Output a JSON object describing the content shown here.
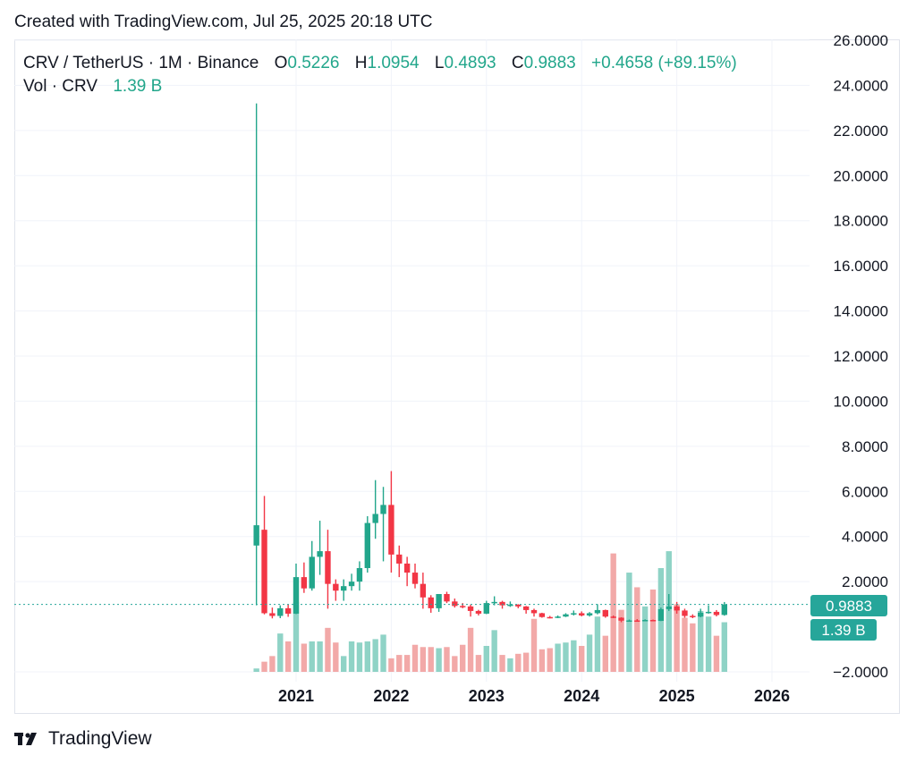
{
  "header": {
    "created_text": "Created with TradingView.com, Jul 25, 2025 20:18 UTC"
  },
  "legend": {
    "symbol": "CRV / TetherUS · 1M · Binance",
    "o_label": "O",
    "o_value": "0.5226",
    "h_label": "H",
    "h_value": "1.0954",
    "l_label": "L",
    "l_value": "0.4893",
    "c_label": "C",
    "c_value": "0.9883",
    "change": "+0.4658 (+89.15%)",
    "vol_label": "Vol · CRV",
    "vol_value": "1.39 B"
  },
  "price_badge": {
    "text": "0.9883"
  },
  "volume_badge": {
    "text": "1.39 B"
  },
  "footer": {
    "brand": "TradingView"
  },
  "colors": {
    "up": "#22a68b",
    "down": "#f23645",
    "up_vol": "#8fd3c6",
    "down_vol": "#f2a9a8",
    "grid": "#f0f3fa",
    "dotted": "#26a69a"
  },
  "chart_data": {
    "type": "candlestick",
    "ylim": [
      -2,
      26
    ],
    "y_ticks": [
      "26.0000",
      "24.0000",
      "22.0000",
      "20.0000",
      "18.0000",
      "16.0000",
      "14.0000",
      "12.0000",
      "10.0000",
      "8.0000",
      "6.0000",
      "4.0000",
      "2.0000",
      "−2.0000"
    ],
    "y_tick_values": [
      26,
      24,
      22,
      20,
      18,
      16,
      14,
      12,
      10,
      8,
      6,
      4,
      2,
      -2
    ],
    "x_ticks": [
      "2021",
      "2022",
      "2023",
      "2024",
      "2025",
      "2026"
    ],
    "x_tick_dates": [
      "2021-01",
      "2022-01",
      "2023-01",
      "2024-01",
      "2025-01",
      "2026-01"
    ],
    "last_close": 0.9883,
    "candles": [
      {
        "t": "2020-08",
        "o": 3.6,
        "h": 23.2,
        "l": 0.95,
        "c": 4.5
      },
      {
        "t": "2020-09",
        "o": 4.3,
        "h": 5.8,
        "l": 0.55,
        "c": 0.6
      },
      {
        "t": "2020-10",
        "o": 0.6,
        "h": 0.85,
        "l": 0.37,
        "c": 0.48
      },
      {
        "t": "2020-11",
        "o": 0.48,
        "h": 0.95,
        "l": 0.38,
        "c": 0.82
      },
      {
        "t": "2020-12",
        "o": 0.82,
        "h": 0.98,
        "l": 0.44,
        "c": 0.58
      },
      {
        "t": "2021-01",
        "o": 0.58,
        "h": 2.8,
        "l": 0.56,
        "c": 2.2
      },
      {
        "t": "2021-02",
        "o": 2.2,
        "h": 2.85,
        "l": 1.5,
        "c": 1.7
      },
      {
        "t": "2021-03",
        "o": 1.7,
        "h": 3.8,
        "l": 1.6,
        "c": 3.1
      },
      {
        "t": "2021-04",
        "o": 3.1,
        "h": 4.7,
        "l": 2.3,
        "c": 3.35
      },
      {
        "t": "2021-05",
        "o": 3.35,
        "h": 4.3,
        "l": 0.8,
        "c": 1.9
      },
      {
        "t": "2021-06",
        "o": 1.9,
        "h": 2.1,
        "l": 1.15,
        "c": 1.6
      },
      {
        "t": "2021-07",
        "o": 1.6,
        "h": 2.1,
        "l": 1.15,
        "c": 1.8
      },
      {
        "t": "2021-08",
        "o": 1.8,
        "h": 2.35,
        "l": 1.6,
        "c": 2.0
      },
      {
        "t": "2021-09",
        "o": 2.0,
        "h": 2.9,
        "l": 1.6,
        "c": 2.6
      },
      {
        "t": "2021-10",
        "o": 2.6,
        "h": 4.9,
        "l": 2.4,
        "c": 4.6
      },
      {
        "t": "2021-11",
        "o": 4.6,
        "h": 6.5,
        "l": 3.9,
        "c": 5.0
      },
      {
        "t": "2021-12",
        "o": 5.0,
        "h": 6.2,
        "l": 2.9,
        "c": 5.4
      },
      {
        "t": "2022-01",
        "o": 5.4,
        "h": 6.9,
        "l": 2.4,
        "c": 3.2
      },
      {
        "t": "2022-02",
        "o": 3.2,
        "h": 3.6,
        "l": 2.2,
        "c": 2.8
      },
      {
        "t": "2022-03",
        "o": 2.8,
        "h": 3.1,
        "l": 1.8,
        "c": 2.4
      },
      {
        "t": "2022-04",
        "o": 2.4,
        "h": 2.8,
        "l": 1.7,
        "c": 1.9
      },
      {
        "t": "2022-05",
        "o": 1.9,
        "h": 2.4,
        "l": 0.8,
        "c": 1.3
      },
      {
        "t": "2022-06",
        "o": 1.3,
        "h": 1.4,
        "l": 0.62,
        "c": 0.82
      },
      {
        "t": "2022-07",
        "o": 0.82,
        "h": 1.45,
        "l": 0.66,
        "c": 1.45
      },
      {
        "t": "2022-08",
        "o": 1.45,
        "h": 1.55,
        "l": 1.05,
        "c": 1.12
      },
      {
        "t": "2022-09",
        "o": 1.12,
        "h": 1.25,
        "l": 0.85,
        "c": 0.92
      },
      {
        "t": "2022-10",
        "o": 0.92,
        "h": 1.05,
        "l": 0.82,
        "c": 0.9
      },
      {
        "t": "2022-11",
        "o": 0.9,
        "h": 0.98,
        "l": 0.45,
        "c": 0.7
      },
      {
        "t": "2022-12",
        "o": 0.7,
        "h": 0.75,
        "l": 0.5,
        "c": 0.58
      },
      {
        "t": "2023-01",
        "o": 0.58,
        "h": 1.15,
        "l": 0.56,
        "c": 1.05
      },
      {
        "t": "2023-02",
        "o": 1.05,
        "h": 1.35,
        "l": 0.95,
        "c": 1.1
      },
      {
        "t": "2023-03",
        "o": 1.1,
        "h": 1.15,
        "l": 0.8,
        "c": 0.95
      },
      {
        "t": "2023-04",
        "o": 0.95,
        "h": 1.12,
        "l": 0.88,
        "c": 0.98
      },
      {
        "t": "2023-05",
        "o": 0.98,
        "h": 1.0,
        "l": 0.82,
        "c": 0.9
      },
      {
        "t": "2023-06",
        "o": 0.9,
        "h": 0.92,
        "l": 0.58,
        "c": 0.74
      },
      {
        "t": "2023-07",
        "o": 0.74,
        "h": 0.8,
        "l": 0.45,
        "c": 0.6
      },
      {
        "t": "2023-08",
        "o": 0.6,
        "h": 0.62,
        "l": 0.4,
        "c": 0.43
      },
      {
        "t": "2023-09",
        "o": 0.43,
        "h": 0.48,
        "l": 0.37,
        "c": 0.42
      },
      {
        "t": "2023-10",
        "o": 0.42,
        "h": 0.5,
        "l": 0.38,
        "c": 0.45
      },
      {
        "t": "2023-11",
        "o": 0.45,
        "h": 0.6,
        "l": 0.43,
        "c": 0.55
      },
      {
        "t": "2023-12",
        "o": 0.55,
        "h": 0.72,
        "l": 0.5,
        "c": 0.6
      },
      {
        "t": "2024-01",
        "o": 0.6,
        "h": 0.68,
        "l": 0.46,
        "c": 0.5
      },
      {
        "t": "2024-02",
        "o": 0.5,
        "h": 0.65,
        "l": 0.45,
        "c": 0.6
      },
      {
        "t": "2024-03",
        "o": 0.6,
        "h": 1.0,
        "l": 0.55,
        "c": 0.74
      },
      {
        "t": "2024-04",
        "o": 0.74,
        "h": 0.76,
        "l": 0.4,
        "c": 0.45
      },
      {
        "t": "2024-05",
        "o": 0.45,
        "h": 0.5,
        "l": 0.38,
        "c": 0.4
      },
      {
        "t": "2024-06",
        "o": 0.4,
        "h": 0.42,
        "l": 0.2,
        "c": 0.27
      },
      {
        "t": "2024-07",
        "o": 0.27,
        "h": 0.32,
        "l": 0.23,
        "c": 0.28
      },
      {
        "t": "2024-08",
        "o": 0.28,
        "h": 0.34,
        "l": 0.22,
        "c": 0.27
      },
      {
        "t": "2024-09",
        "o": 0.27,
        "h": 0.33,
        "l": 0.24,
        "c": 0.3
      },
      {
        "t": "2024-10",
        "o": 0.3,
        "h": 0.32,
        "l": 0.24,
        "c": 0.26
      },
      {
        "t": "2024-11",
        "o": 0.26,
        "h": 0.85,
        "l": 0.25,
        "c": 0.78
      },
      {
        "t": "2024-12",
        "o": 0.78,
        "h": 1.45,
        "l": 0.7,
        "c": 0.9
      },
      {
        "t": "2025-01",
        "o": 0.9,
        "h": 1.1,
        "l": 0.58,
        "c": 0.72
      },
      {
        "t": "2025-02",
        "o": 0.72,
        "h": 0.8,
        "l": 0.4,
        "c": 0.48
      },
      {
        "t": "2025-03",
        "o": 0.48,
        "h": 0.55,
        "l": 0.38,
        "c": 0.45
      },
      {
        "t": "2025-04",
        "o": 0.45,
        "h": 0.8,
        "l": 0.42,
        "c": 0.62
      },
      {
        "t": "2025-05",
        "o": 0.62,
        "h": 0.95,
        "l": 0.58,
        "c": 0.66
      },
      {
        "t": "2025-06",
        "o": 0.66,
        "h": 0.74,
        "l": 0.46,
        "c": 0.52
      },
      {
        "t": "2025-07",
        "o": 0.5226,
        "h": 1.0954,
        "l": 0.4893,
        "c": 0.9883
      }
    ],
    "volume_levels": [
      0.03,
      0.09,
      0.14,
      0.34,
      0.27,
      0.62,
      0.25,
      0.27,
      0.27,
      0.39,
      0.26,
      0.14,
      0.27,
      0.26,
      0.27,
      0.29,
      0.33,
      0.12,
      0.15,
      0.15,
      0.24,
      0.22,
      0.22,
      0.21,
      0.22,
      0.14,
      0.24,
      0.39,
      0.15,
      0.23,
      0.37,
      0.15,
      0.12,
      0.16,
      0.17,
      0.47,
      0.2,
      0.21,
      0.25,
      0.26,
      0.28,
      0.23,
      0.33,
      0.49,
      0.32,
      1.05,
      0.55,
      0.88,
      0.75,
      0.58,
      0.73,
      0.92,
      1.07,
      0.6,
      0.48,
      0.43,
      0.54,
      0.49,
      0.32,
      0.44
    ]
  }
}
